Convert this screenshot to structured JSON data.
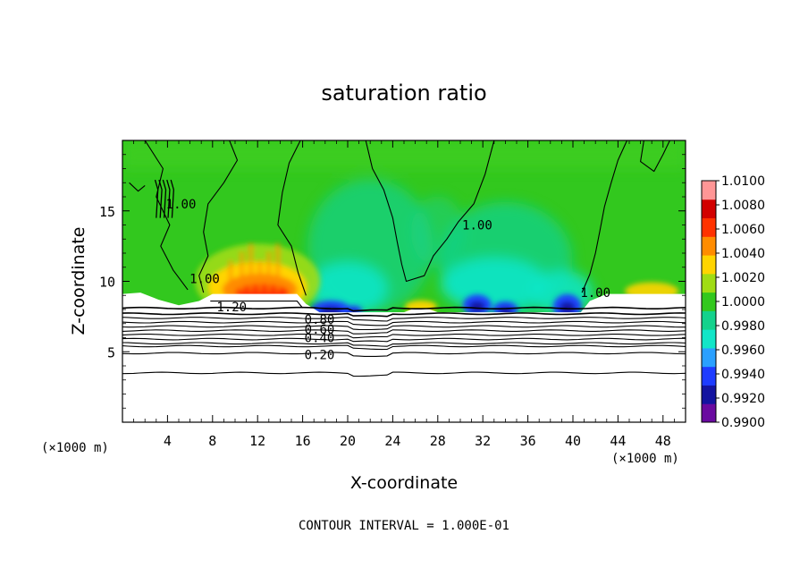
{
  "chart_data": {
    "type": "heatmap",
    "title": "saturation ratio",
    "xlabel": "X-coordinate",
    "ylabel": "Z-coordinate",
    "x_units": "(×1000 m)",
    "z_units": "(×1000 m)",
    "xlim": [
      0,
      50
    ],
    "ylim": [
      0,
      20
    ],
    "x_ticks": [
      4,
      8,
      12,
      16,
      20,
      24,
      28,
      32,
      36,
      40,
      44,
      48
    ],
    "y_ticks": [
      5,
      10,
      15
    ],
    "colorbar": {
      "range": [
        0.99,
        1.01
      ],
      "ticks": [
        "1.0100",
        "1.0080",
        "1.0060",
        "1.0040",
        "1.0020",
        "1.0000",
        "0.9980",
        "0.9960",
        "0.9940",
        "0.9920",
        "0.9900"
      ],
      "colors": [
        "#6a0aa0",
        "#1414a0",
        "#1e3cff",
        "#2aa0ff",
        "#12e6c8",
        "#14d28c",
        "#32c81e",
        "#a0dc14",
        "#ffd400",
        "#ff8c00",
        "#ff3200",
        "#d20000",
        "#ff9696"
      ]
    },
    "contour_labels": [
      {
        "text": "1.20",
        "x": 9.7,
        "z": 8.2
      },
      {
        "text": "0.80",
        "x": 17.5,
        "z": 7.3
      },
      {
        "text": "0.60",
        "x": 17.5,
        "z": 6.6
      },
      {
        "text": "0.40",
        "x": 17.5,
        "z": 6.0
      },
      {
        "text": "0.20",
        "x": 17.5,
        "z": 4.8
      },
      {
        "text": "1.00",
        "x": 5.2,
        "z": 15.5
      },
      {
        "text": "1.00",
        "x": 7.3,
        "z": 10.2
      },
      {
        "text": "1.00",
        "x": 31.5,
        "z": 14.0
      },
      {
        "text": "1.00",
        "x": 42.0,
        "z": 9.2
      }
    ],
    "note": "CONTOUR INTERVAL = 1.000E-01"
  }
}
